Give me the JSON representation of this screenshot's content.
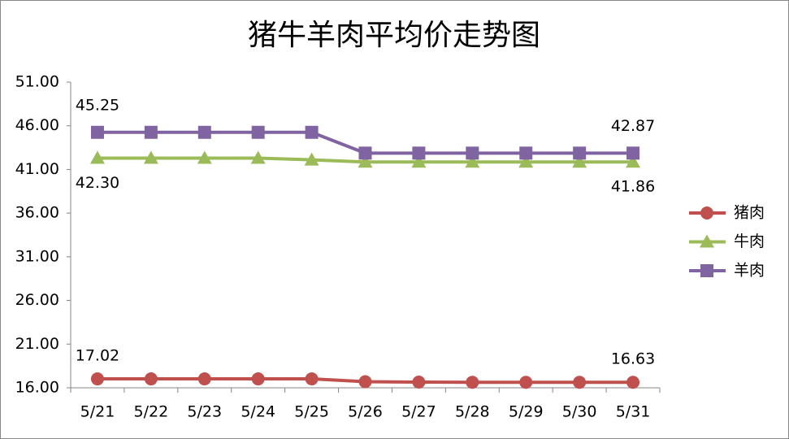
{
  "chart_data": {
    "type": "line",
    "title": "猪牛羊肉平均价走势图",
    "categories": [
      "5/21",
      "5/22",
      "5/23",
      "5/24",
      "5/25",
      "5/26",
      "5/27",
      "5/28",
      "5/29",
      "5/30",
      "5/31"
    ],
    "series": [
      {
        "name": "猪肉",
        "color": "#c0504d",
        "marker": "circle",
        "values": [
          17.02,
          17.02,
          17.02,
          17.02,
          17.02,
          16.7,
          16.65,
          16.63,
          16.63,
          16.63,
          16.63
        ],
        "value_labels": [
          "17.02",
          null,
          null,
          null,
          null,
          null,
          null,
          null,
          null,
          null,
          "16.63"
        ]
      },
      {
        "name": "牛肉",
        "color": "#9bbb59",
        "marker": "triangle",
        "values": [
          42.3,
          42.3,
          42.3,
          42.3,
          42.1,
          41.86,
          41.86,
          41.86,
          41.86,
          41.86,
          41.86
        ],
        "value_labels": [
          "42.30",
          null,
          null,
          null,
          null,
          null,
          null,
          null,
          null,
          null,
          "41.86"
        ]
      },
      {
        "name": "羊肉",
        "color": "#8064a2",
        "marker": "square",
        "values": [
          45.25,
          45.25,
          45.25,
          45.25,
          45.25,
          42.87,
          42.87,
          42.87,
          42.87,
          42.87,
          42.87
        ],
        "value_labels": [
          "45.25",
          null,
          null,
          null,
          null,
          null,
          null,
          null,
          null,
          null,
          "42.87"
        ]
      }
    ],
    "ylim": [
      16,
      51
    ],
    "yticks": [
      {
        "value": 16,
        "label": "16.00"
      },
      {
        "value": 21,
        "label": "21.00"
      },
      {
        "value": 26,
        "label": "26.00"
      },
      {
        "value": 31,
        "label": "31.00"
      },
      {
        "value": 36,
        "label": "36.00"
      },
      {
        "value": 41,
        "label": "41.00"
      },
      {
        "value": 46,
        "label": "46.00"
      },
      {
        "value": 51,
        "label": "51.00"
      }
    ],
    "grid": false,
    "legend": "right"
  }
}
